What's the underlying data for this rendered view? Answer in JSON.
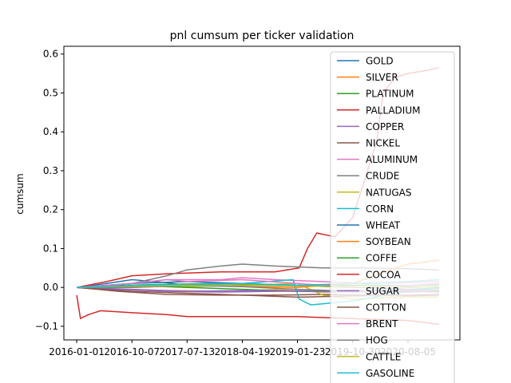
{
  "chart_data": {
    "type": "line",
    "title": "pnl cumsum per ticker validation",
    "xlabel": "",
    "ylabel": "cumsum",
    "x_tick_labels": [
      "2016-01-01",
      "2016-10-07",
      "2017-07-13",
      "2018-04-19",
      "2019-01-23",
      "2019-10-30",
      "2020-08-05"
    ],
    "x_tick_dates": [
      "2016-01-01",
      "2016-10-07",
      "2017-07-13",
      "2018-04-19",
      "2019-01-23",
      "2019-10-30",
      "2020-08-05"
    ],
    "x_range": [
      "2015-10-28",
      "2021-04-25"
    ],
    "ylim": [
      -0.135,
      0.62
    ],
    "y_ticks": [
      -0.1,
      0.0,
      0.1,
      0.2,
      0.3,
      0.4,
      0.5,
      0.6
    ],
    "y_tick_labels": [
      "−0.1",
      "0.0",
      "0.1",
      "0.2",
      "0.3",
      "0.4",
      "0.5",
      "0.6"
    ],
    "legend_position": "top-right, extending beyond the axes",
    "grid": false,
    "series": [
      {
        "name": "GOLD",
        "color": "#1f77b4",
        "points": [
          [
            "2016-01-01",
            0.0
          ],
          [
            "2016-06-01",
            0.01
          ],
          [
            "2016-10-07",
            0.02
          ],
          [
            "2017-04-01",
            0.012
          ],
          [
            "2017-07-13",
            0.005
          ],
          [
            "2018-01-01",
            0.01
          ],
          [
            "2018-04-19",
            0.008
          ],
          [
            "2018-12-01",
            0.006
          ],
          [
            "2019-06-01",
            0.003
          ],
          [
            "2020-01-01",
            0.0
          ],
          [
            "2020-08-05",
            -0.005
          ],
          [
            "2021-01-10",
            -0.002
          ]
        ]
      },
      {
        "name": "SILVER",
        "color": "#ff7f0e",
        "points": [
          [
            "2016-01-01",
            0.0
          ],
          [
            "2016-08-01",
            -0.005
          ],
          [
            "2017-04-01",
            -0.008
          ],
          [
            "2018-01-01",
            -0.01
          ],
          [
            "2018-10-01",
            -0.006
          ],
          [
            "2019-06-01",
            -0.012
          ],
          [
            "2020-01-01",
            -0.01
          ],
          [
            "2020-08-05",
            -0.008
          ],
          [
            "2021-01-10",
            -0.006
          ]
        ]
      },
      {
        "name": "PLATINUM",
        "color": "#2ca02c",
        "points": [
          [
            "2016-01-01",
            0.0
          ],
          [
            "2016-08-01",
            0.005
          ],
          [
            "2017-04-01",
            0.008
          ],
          [
            "2018-01-01",
            0.01
          ],
          [
            "2018-10-01",
            0.006
          ],
          [
            "2019-06-01",
            0.004
          ],
          [
            "2020-01-01",
            0.006
          ],
          [
            "2020-08-05",
            0.005
          ],
          [
            "2021-01-10",
            0.006
          ]
        ]
      },
      {
        "name": "PALLADIUM",
        "color": "#d62728",
        "points": [
          [
            "2016-01-01",
            0.0
          ],
          [
            "2016-06-01",
            0.015
          ],
          [
            "2016-10-07",
            0.03
          ],
          [
            "2017-04-01",
            0.035
          ],
          [
            "2018-01-01",
            0.04
          ],
          [
            "2018-10-01",
            0.04
          ],
          [
            "2019-02-01",
            0.05
          ],
          [
            "2019-03-15",
            0.1
          ],
          [
            "2019-05-01",
            0.14
          ],
          [
            "2019-08-01",
            0.13
          ],
          [
            "2019-10-30",
            0.18
          ],
          [
            "2020-01-01",
            0.28
          ],
          [
            "2020-03-01",
            0.38
          ],
          [
            "2020-04-01",
            0.5
          ],
          [
            "2020-06-01",
            0.54
          ],
          [
            "2020-08-05",
            0.55
          ],
          [
            "2020-12-01",
            0.56
          ],
          [
            "2021-01-10",
            0.565
          ]
        ]
      },
      {
        "name": "COPPER",
        "color": "#9467bd",
        "points": [
          [
            "2016-01-01",
            0.0
          ],
          [
            "2016-08-01",
            -0.005
          ],
          [
            "2017-04-01",
            -0.01
          ],
          [
            "2018-01-01",
            -0.012
          ],
          [
            "2018-10-01",
            -0.01
          ],
          [
            "2019-06-01",
            -0.008
          ],
          [
            "2020-01-01",
            -0.01
          ],
          [
            "2020-08-05",
            -0.012
          ],
          [
            "2021-01-10",
            -0.01
          ]
        ]
      },
      {
        "name": "NICKEL",
        "color": "#8c564b",
        "points": [
          [
            "2016-01-01",
            0.0
          ],
          [
            "2016-08-01",
            -0.01
          ],
          [
            "2017-04-01",
            -0.018
          ],
          [
            "2018-01-01",
            -0.02
          ],
          [
            "2018-10-01",
            -0.02
          ],
          [
            "2019-06-01",
            -0.018
          ],
          [
            "2020-01-01",
            -0.02
          ],
          [
            "2020-08-05",
            -0.022
          ],
          [
            "2021-01-10",
            -0.02
          ]
        ]
      },
      {
        "name": "ALUMINUM",
        "color": "#e377c2",
        "points": [
          [
            "2016-01-01",
            0.0
          ],
          [
            "2016-10-07",
            0.01
          ],
          [
            "2017-04-01",
            0.02
          ],
          [
            "2018-01-01",
            0.02
          ],
          [
            "2018-04-19",
            0.025
          ],
          [
            "2018-10-01",
            0.02
          ],
          [
            "2019-06-01",
            0.015
          ],
          [
            "2020-01-01",
            0.01
          ],
          [
            "2020-08-05",
            0.012
          ],
          [
            "2021-01-10",
            0.015
          ]
        ]
      },
      {
        "name": "CRUDE",
        "color": "#7f7f7f",
        "points": [
          [
            "2016-01-01",
            0.0
          ],
          [
            "2016-10-07",
            0.01
          ],
          [
            "2017-04-01",
            0.03
          ],
          [
            "2017-07-13",
            0.045
          ],
          [
            "2018-01-01",
            0.055
          ],
          [
            "2018-04-19",
            0.06
          ],
          [
            "2018-10-01",
            0.055
          ],
          [
            "2019-06-01",
            0.05
          ],
          [
            "2020-01-01",
            0.05
          ],
          [
            "2020-08-05",
            0.048
          ],
          [
            "2021-01-10",
            0.045
          ]
        ]
      },
      {
        "name": "NATUGAS",
        "color": "#bcbd22",
        "points": [
          [
            "2016-01-01",
            0.0
          ],
          [
            "2016-10-07",
            0.005
          ],
          [
            "2017-07-13",
            0.002
          ],
          [
            "2018-04-19",
            0.005
          ],
          [
            "2019-01-23",
            0.01
          ],
          [
            "2019-06-01",
            -0.02
          ],
          [
            "2019-10-30",
            -0.03
          ],
          [
            "2020-08-05",
            -0.025
          ],
          [
            "2021-01-10",
            -0.025
          ]
        ]
      },
      {
        "name": "CORN",
        "color": "#17becf",
        "points": [
          [
            "2016-01-01",
            0.0
          ],
          [
            "2016-10-07",
            0.002
          ],
          [
            "2017-07-13",
            0.005
          ],
          [
            "2018-04-19",
            0.01
          ],
          [
            "2019-01-01",
            0.02
          ],
          [
            "2019-02-01",
            -0.03
          ],
          [
            "2019-04-01",
            -0.045
          ],
          [
            "2019-10-30",
            -0.035
          ],
          [
            "2020-08-05",
            -0.01
          ],
          [
            "2021-01-10",
            0.0
          ]
        ]
      },
      {
        "name": "WHEAT",
        "color": "#1f77b4",
        "points": [
          [
            "2016-01-01",
            0.0
          ],
          [
            "2016-10-07",
            0.01
          ],
          [
            "2017-07-13",
            0.015
          ],
          [
            "2018-04-19",
            0.01
          ],
          [
            "2019-01-23",
            0.005
          ],
          [
            "2019-10-30",
            0.0
          ],
          [
            "2020-08-05",
            0.002
          ],
          [
            "2021-01-10",
            0.0
          ]
        ]
      },
      {
        "name": "SOYBEAN",
        "color": "#ff7f0e",
        "points": [
          [
            "2016-01-01",
            0.0
          ],
          [
            "2016-10-07",
            0.0
          ],
          [
            "2017-07-13",
            0.005
          ],
          [
            "2018-04-19",
            0.003
          ],
          [
            "2019-01-23",
            0.0
          ],
          [
            "2019-10-30",
            0.01
          ],
          [
            "2020-06-01",
            0.05
          ],
          [
            "2020-08-05",
            0.06
          ],
          [
            "2021-01-10",
            0.07
          ]
        ]
      },
      {
        "name": "COFFE",
        "color": "#2ca02c",
        "points": [
          [
            "2016-01-01",
            0.0
          ],
          [
            "2016-10-07",
            0.005
          ],
          [
            "2017-07-13",
            0.0
          ],
          [
            "2018-04-19",
            -0.005
          ],
          [
            "2019-01-23",
            -0.01
          ],
          [
            "2019-10-30",
            -0.008
          ],
          [
            "2020-08-05",
            -0.01
          ],
          [
            "2021-01-10",
            -0.01
          ]
        ]
      },
      {
        "name": "COCOA",
        "color": "#d62728",
        "points": [
          [
            "2016-01-01",
            -0.02
          ],
          [
            "2016-01-20",
            -0.08
          ],
          [
            "2016-03-01",
            -0.07
          ],
          [
            "2016-05-01",
            -0.06
          ],
          [
            "2016-10-07",
            -0.065
          ],
          [
            "2017-04-01",
            -0.07
          ],
          [
            "2017-07-13",
            -0.075
          ],
          [
            "2018-04-19",
            -0.075
          ],
          [
            "2019-01-23",
            -0.075
          ],
          [
            "2019-10-30",
            -0.08
          ],
          [
            "2020-08-05",
            -0.085
          ],
          [
            "2021-01-10",
            -0.095
          ]
        ]
      },
      {
        "name": "SUGAR",
        "color": "#9467bd",
        "points": [
          [
            "2016-01-01",
            0.0
          ],
          [
            "2016-10-07",
            -0.005
          ],
          [
            "2017-07-13",
            -0.01
          ],
          [
            "2018-04-19",
            -0.008
          ],
          [
            "2019-01-23",
            -0.01
          ],
          [
            "2019-10-30",
            -0.012
          ],
          [
            "2020-08-05",
            -0.01
          ],
          [
            "2021-01-10",
            -0.012
          ]
        ]
      },
      {
        "name": "COTTON",
        "color": "#8c564b",
        "points": [
          [
            "2016-01-01",
            0.0
          ],
          [
            "2016-10-07",
            -0.01
          ],
          [
            "2017-07-13",
            -0.015
          ],
          [
            "2018-04-19",
            -0.02
          ],
          [
            "2019-01-23",
            -0.025
          ],
          [
            "2019-10-30",
            -0.022
          ],
          [
            "2020-08-05",
            -0.02
          ],
          [
            "2021-01-10",
            -0.018
          ]
        ]
      },
      {
        "name": "BRENT",
        "color": "#e377c2",
        "points": [
          [
            "2016-01-01",
            0.0
          ],
          [
            "2016-10-07",
            0.01
          ],
          [
            "2017-04-01",
            0.02
          ],
          [
            "2017-07-13",
            0.015
          ],
          [
            "2018-04-19",
            0.02
          ],
          [
            "2019-01-23",
            0.01
          ],
          [
            "2019-10-30",
            0.0
          ],
          [
            "2020-08-05",
            0.005
          ],
          [
            "2021-01-10",
            0.01
          ]
        ]
      },
      {
        "name": "HOG",
        "color": "#7f7f7f",
        "points": [
          [
            "2016-01-01",
            0.0
          ],
          [
            "2016-10-07",
            0.0
          ],
          [
            "2017-07-13",
            0.005
          ],
          [
            "2018-04-19",
            0.002
          ],
          [
            "2019-01-23",
            -0.005
          ],
          [
            "2019-10-30",
            -0.01
          ],
          [
            "2020-08-05",
            -0.005
          ],
          [
            "2021-01-10",
            -0.008
          ]
        ]
      },
      {
        "name": "CATTLE",
        "color": "#bcbd22",
        "points": [
          [
            "2016-01-01",
            0.0
          ],
          [
            "2016-10-07",
            0.003
          ],
          [
            "2017-07-13",
            0.005
          ],
          [
            "2018-04-19",
            0.006
          ],
          [
            "2019-01-23",
            0.004
          ],
          [
            "2019-10-30",
            0.002
          ],
          [
            "2020-08-05",
            0.0
          ],
          [
            "2021-01-10",
            0.002
          ]
        ]
      },
      {
        "name": "GASOLINE",
        "color": "#17becf",
        "points": [
          [
            "2016-01-01",
            0.0
          ],
          [
            "2016-10-07",
            0.005
          ],
          [
            "2017-07-13",
            0.008
          ],
          [
            "2018-04-19",
            0.01
          ],
          [
            "2019-01-23",
            0.005
          ],
          [
            "2019-10-30",
            0.01
          ],
          [
            "2020-08-05",
            0.015
          ],
          [
            "2021-01-10",
            0.02
          ]
        ]
      }
    ]
  }
}
